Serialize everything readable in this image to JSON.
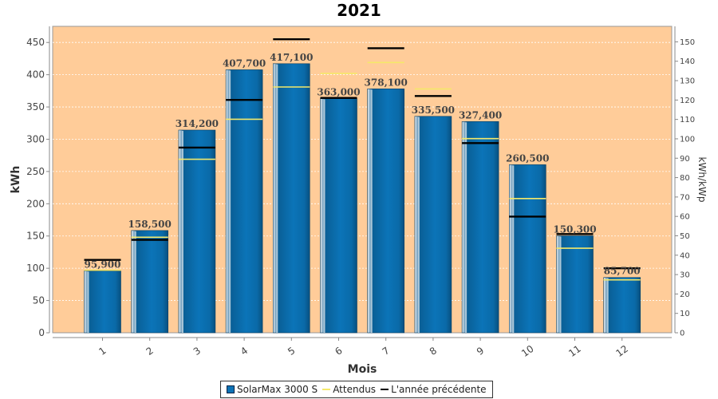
{
  "chart_data": {
    "type": "bar",
    "title": "2021",
    "xlabel": "Mois",
    "ylabel": "kWh",
    "y2label": "kWh/kWp",
    "categories": [
      "1",
      "2",
      "3",
      "4",
      "5",
      "6",
      "7",
      "8",
      "9",
      "10",
      "11",
      "12"
    ],
    "ylim": [
      0,
      475
    ],
    "y2lim": [
      0,
      158
    ],
    "yticks": [
      0,
      50,
      100,
      150,
      200,
      250,
      300,
      350,
      400,
      450
    ],
    "y2ticks": [
      0,
      10,
      20,
      30,
      40,
      50,
      60,
      70,
      80,
      90,
      100,
      110,
      120,
      130,
      140,
      150
    ],
    "grid": true,
    "legend_position": "bottom",
    "series": [
      {
        "name": "SolarMax 3000 S",
        "kind": "bar",
        "values": [
          95.9,
          158.5,
          314.2,
          407.7,
          417.1,
          363.0,
          378.1,
          335.5,
          327.4,
          260.5,
          150.3,
          85.7
        ],
        "labels": [
          "95,900",
          "158,500",
          "314,200",
          "407,700",
          "417,100",
          "363,000",
          "378,100",
          "335,500",
          "327,400",
          "260,500",
          "150,300",
          "85,700"
        ],
        "color": "#0b72b5"
      },
      {
        "name": "Attendus",
        "kind": "marker",
        "values": [
          97,
          148,
          269,
          331,
          381,
          402,
          419,
          378,
          301,
          208,
          131,
          82
        ],
        "color": "#f5e96a"
      },
      {
        "name": "L'année précédente",
        "kind": "marker",
        "values": [
          113,
          144,
          287,
          361,
          455,
          364,
          441,
          367,
          294,
          180,
          153,
          100
        ],
        "color": "#000000"
      }
    ]
  },
  "colors": {
    "plot_background": "#ffcc99",
    "grid": "#ffffff",
    "bar": "#0b72b5",
    "bar_dark": "#04456f",
    "bar_light": "#5fb0e3"
  }
}
